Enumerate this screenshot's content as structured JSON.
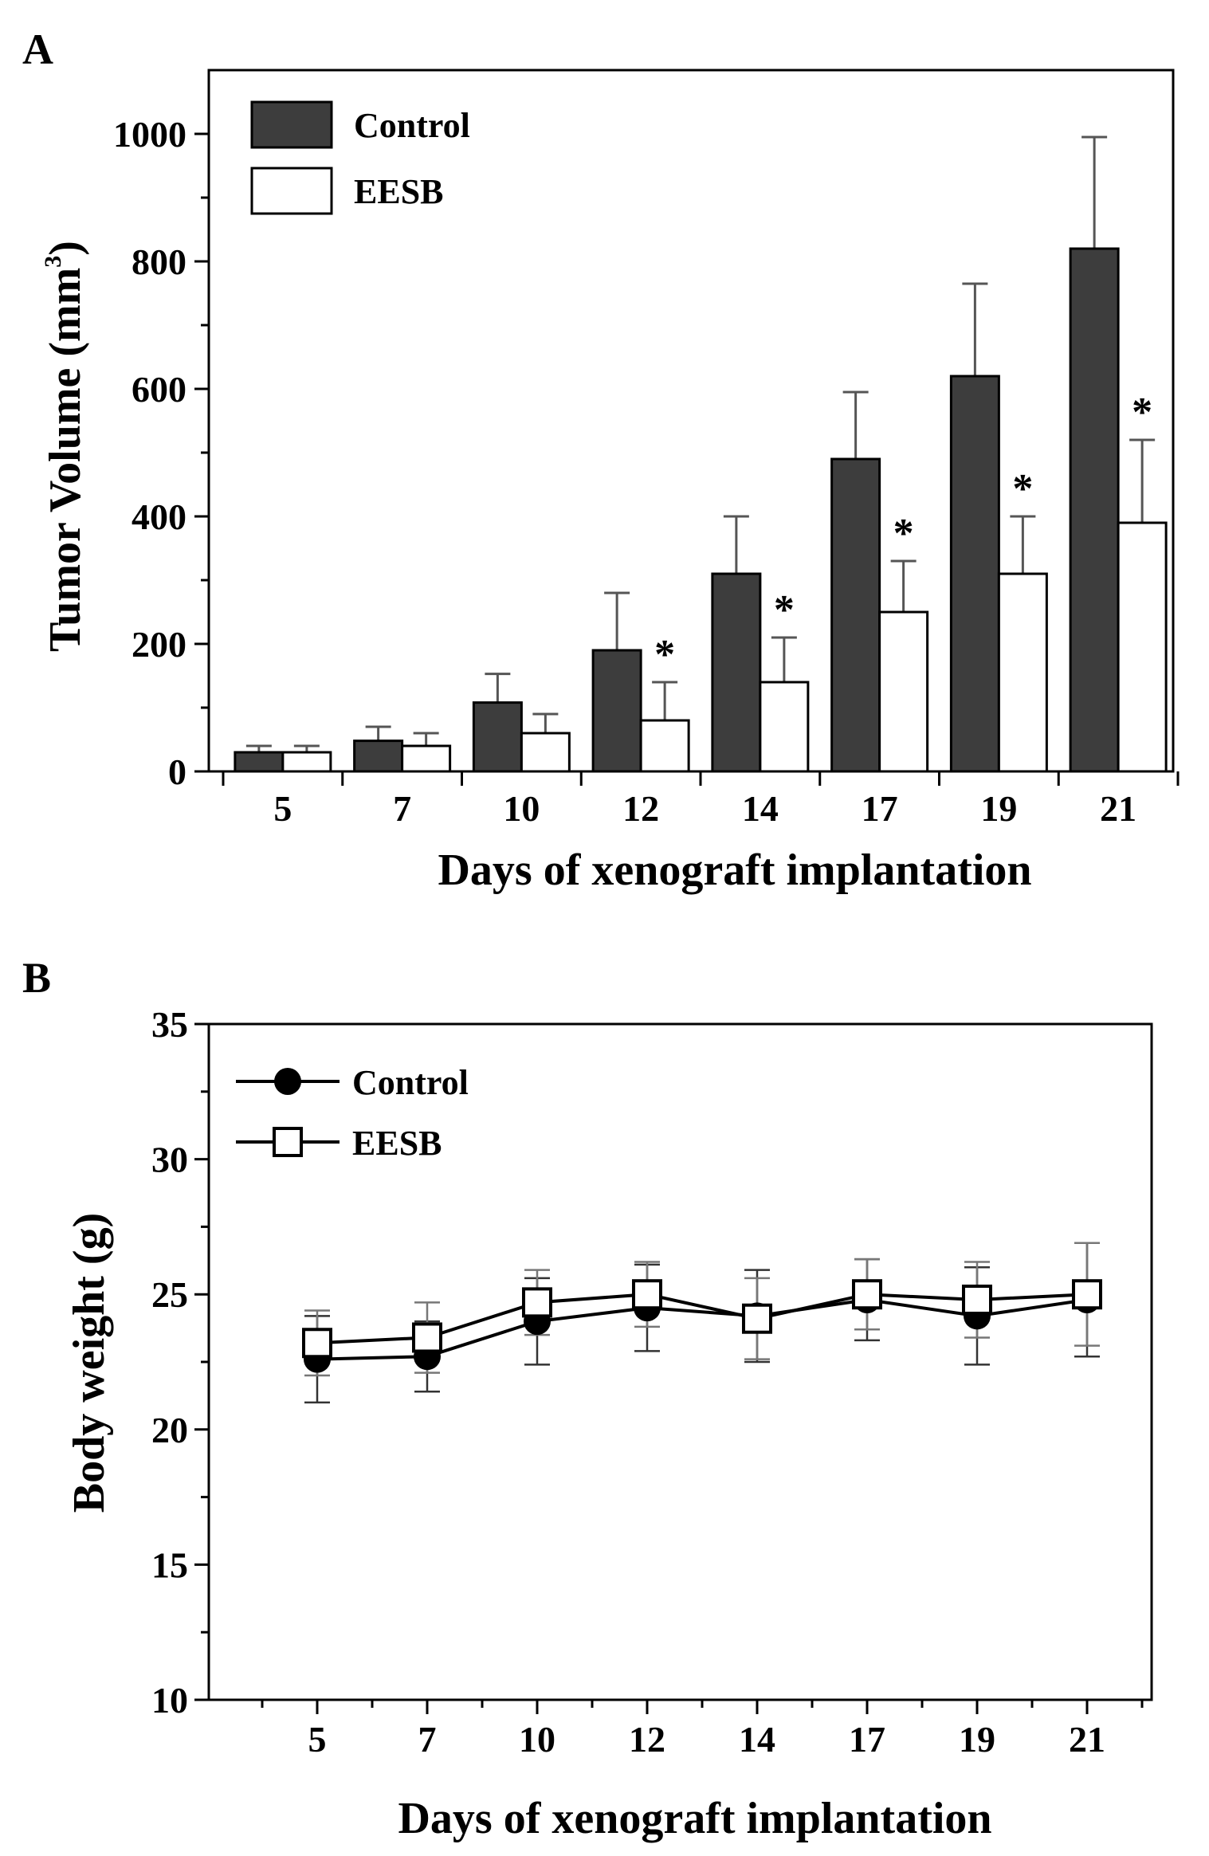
{
  "figure": {
    "chart_data": [
      {
        "panel": "A",
        "type": "bar",
        "title": "",
        "xlabel": "Days of xenograft implantation",
        "ylabel": "Tumor Volume (mm",
        "ylabel_superscript": "3",
        "ylabel_close": ")",
        "categories": [
          "5",
          "7",
          "10",
          "12",
          "14",
          "17",
          "19",
          "21"
        ],
        "ylim": [
          0,
          1100
        ],
        "yticks": [
          "0",
          "200",
          "400",
          "600",
          "800",
          "1000"
        ],
        "yticks_values": [
          0,
          200,
          400,
          600,
          800,
          1000
        ],
        "series": [
          {
            "name": "Control",
            "color": "#3d3d3d",
            "values": [
              30,
              48,
              108,
              190,
              310,
              490,
              620,
              820
            ],
            "errors": [
              10,
              22,
              45,
              90,
              90,
              105,
              145,
              175
            ]
          },
          {
            "name": "EESB",
            "color": "#ffffff",
            "values": [
              30,
              40,
              60,
              80,
              140,
              250,
              310,
              390
            ],
            "errors": [
              10,
              20,
              30,
              60,
              70,
              80,
              90,
              130
            ]
          }
        ],
        "significance": [
          "",
          "",
          "",
          "*",
          "*",
          "*",
          "*",
          "*"
        ]
      },
      {
        "panel": "B",
        "type": "line",
        "title": "",
        "xlabel": "Days of xenograft implantation",
        "ylabel": "Body weight (g)",
        "x": [
          "5",
          "7",
          "10",
          "12",
          "14",
          "17",
          "19",
          "21"
        ],
        "ylim": [
          10,
          35
        ],
        "yticks": [
          "10",
          "15",
          "20",
          "25",
          "30",
          "35"
        ],
        "yticks_values": [
          10,
          15,
          20,
          25,
          30,
          35
        ],
        "series": [
          {
            "name": "Control",
            "marker": "filled-circle",
            "color": "#000000",
            "values": [
              22.6,
              22.7,
              24.0,
              24.5,
              24.2,
              24.8,
              24.2,
              24.8
            ],
            "errors": [
              1.6,
              1.3,
              1.6,
              1.6,
              1.7,
              1.5,
              1.8,
              2.1
            ]
          },
          {
            "name": "EESB",
            "marker": "open-square",
            "color": "#000000",
            "values": [
              23.2,
              23.4,
              24.7,
              25.0,
              24.1,
              25.0,
              24.8,
              25.0
            ],
            "errors": [
              1.2,
              1.3,
              1.2,
              1.2,
              1.5,
              1.3,
              1.4,
              1.9
            ]
          }
        ]
      }
    ]
  }
}
